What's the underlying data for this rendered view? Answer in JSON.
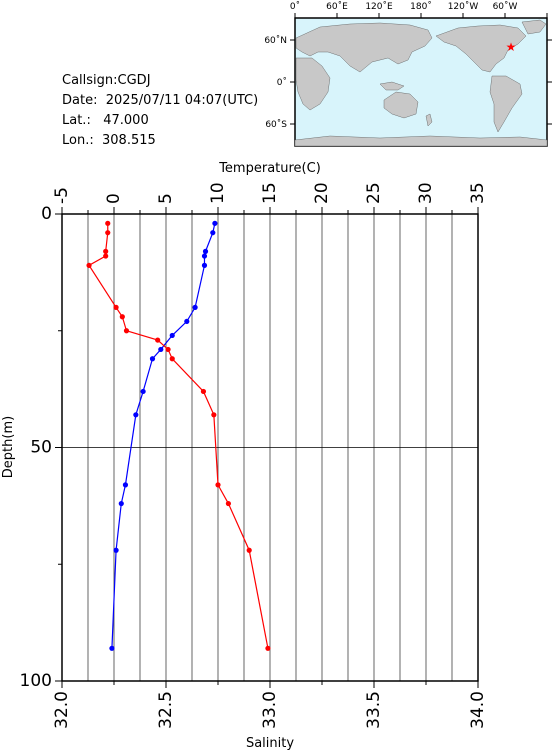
{
  "info": {
    "callsign_label": "Callsign:",
    "callsign": "CGDJ",
    "date_label": "Date:",
    "date": "2025/07/11 04:07(UTC)",
    "lat_label": "Lat.:",
    "lat": "47.000",
    "lon_label": "Lon.:",
    "lon": "308.515"
  },
  "map": {
    "top_labels": [
      "0˚",
      "60˚E",
      "120˚E",
      "180˚",
      "120˚W",
      "60˚W"
    ],
    "lat_labels": [
      "60˚N",
      "0˚",
      "60˚S"
    ],
    "ocean_color": "#d8f4fb",
    "land_color": "#c8c8c8",
    "marker_color": "#ff0000",
    "marker_icon": "star"
  },
  "chart_data": {
    "type": "line",
    "ylabel": "Depth(m)",
    "y_ticks": [
      "0",
      "50",
      "100"
    ],
    "ylim": [
      0,
      100
    ],
    "y_inverted": true,
    "grid": true,
    "top_axis": {
      "label": "Temperature(C)",
      "ticks": [
        "-5",
        "0",
        "5",
        "10",
        "15",
        "20",
        "25",
        "30",
        "35"
      ],
      "range": [
        -5,
        35
      ]
    },
    "bottom_axis": {
      "label": "Salinity",
      "ticks": [
        "32.0",
        "32.5",
        "33.0",
        "33.5",
        "34.0"
      ],
      "range": [
        32.0,
        34.0
      ]
    },
    "series": [
      {
        "quantity": "temperature",
        "axis": "top",
        "color": "#0000ff",
        "points": [
          {
            "x": 9.7,
            "y": 2
          },
          {
            "x": 9.5,
            "y": 4
          },
          {
            "x": 8.8,
            "y": 8
          },
          {
            "x": 8.7,
            "y": 9
          },
          {
            "x": 8.7,
            "y": 11
          },
          {
            "x": 7.8,
            "y": 20
          },
          {
            "x": 7.0,
            "y": 23
          },
          {
            "x": 5.6,
            "y": 26
          },
          {
            "x": 4.5,
            "y": 29
          },
          {
            "x": 3.7,
            "y": 31
          },
          {
            "x": 2.8,
            "y": 38
          },
          {
            "x": 2.1,
            "y": 43
          },
          {
            "x": 1.1,
            "y": 58
          },
          {
            "x": 0.7,
            "y": 62
          },
          {
            "x": 0.2,
            "y": 72
          },
          {
            "x": -0.2,
            "y": 93
          }
        ]
      },
      {
        "quantity": "salinity",
        "axis": "bottom",
        "color": "#ff0000",
        "points": [
          {
            "x": 32.22,
            "y": 2
          },
          {
            "x": 32.22,
            "y": 4
          },
          {
            "x": 32.21,
            "y": 8
          },
          {
            "x": 32.21,
            "y": 9
          },
          {
            "x": 32.13,
            "y": 11
          },
          {
            "x": 32.26,
            "y": 20
          },
          {
            "x": 32.29,
            "y": 22
          },
          {
            "x": 32.31,
            "y": 25
          },
          {
            "x": 32.46,
            "y": 27
          },
          {
            "x": 32.51,
            "y": 29
          },
          {
            "x": 32.53,
            "y": 31
          },
          {
            "x": 32.68,
            "y": 38
          },
          {
            "x": 32.73,
            "y": 43
          },
          {
            "x": 32.75,
            "y": 58
          },
          {
            "x": 32.8,
            "y": 62
          },
          {
            "x": 32.9,
            "y": 72
          },
          {
            "x": 32.99,
            "y": 93
          }
        ]
      }
    ]
  }
}
